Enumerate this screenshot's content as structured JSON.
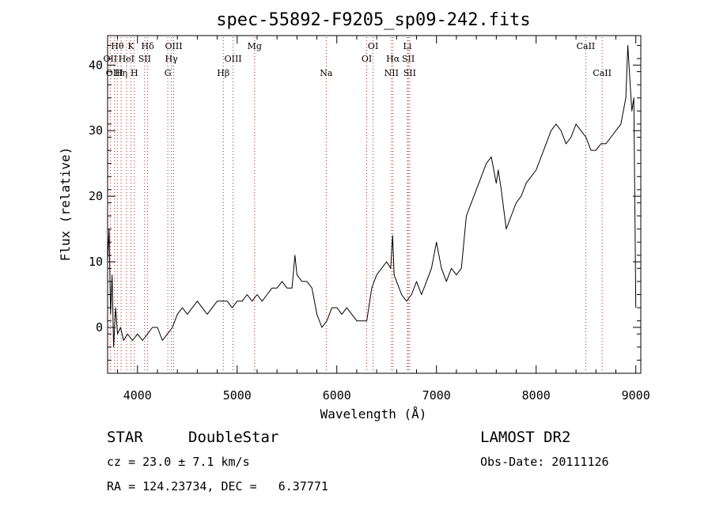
{
  "chart_data": {
    "type": "line",
    "title": "spec-55892-F9205_sp09-242.fits",
    "xlabel": "Wavelength (Å)",
    "ylabel": "Flux (relative)",
    "xlim": [
      3700,
      9050
    ],
    "ylim": [
      -7,
      44.5
    ],
    "x_ticks": [
      "4000",
      "5000",
      "6000",
      "7000",
      "8000",
      "9000"
    ],
    "x_tick_values": [
      4000,
      5000,
      6000,
      7000,
      8000,
      9000
    ],
    "y_ticks": [
      "0",
      "10",
      "20",
      "30",
      "40"
    ],
    "y_tick_values": [
      0,
      10,
      20,
      30,
      40
    ],
    "grid": false,
    "series": [
      {
        "x": [
          3700,
          3715,
          3730,
          3745,
          3760,
          3780,
          3800,
          3830,
          3860,
          3900,
          3950,
          4000,
          4050,
          4100,
          4150,
          4200,
          4250,
          4300,
          4350,
          4400,
          4450,
          4500,
          4550,
          4600,
          4650,
          4700,
          4750,
          4800,
          4850,
          4900,
          4950,
          5000,
          5050,
          5100,
          5150,
          5200,
          5250,
          5300,
          5350,
          5400,
          5450,
          5500,
          5550,
          5580,
          5600,
          5650,
          5700,
          5750,
          5800,
          5850,
          5900,
          5950,
          6000,
          6050,
          6100,
          6150,
          6200,
          6250,
          6300,
          6350,
          6400,
          6450,
          6500,
          6540,
          6560,
          6575,
          6600,
          6650,
          6700,
          6750,
          6800,
          6850,
          6900,
          6950,
          7000,
          7050,
          7100,
          7150,
          7200,
          7250,
          7300,
          7350,
          7400,
          7450,
          7500,
          7550,
          7600,
          7620,
          7650,
          7700,
          7750,
          7800,
          7850,
          7900,
          7950,
          8000,
          8050,
          8100,
          8150,
          8200,
          8250,
          8300,
          8350,
          8400,
          8450,
          8500,
          8550,
          8600,
          8650,
          8700,
          8750,
          8800,
          8850,
          8900,
          8920,
          8940,
          8960,
          8980,
          9000
        ],
        "y": [
          10,
          15,
          2,
          8,
          -3,
          3,
          -1,
          0,
          -2,
          -1,
          -2,
          -1,
          -2,
          -1,
          0,
          0,
          -2,
          -1,
          0,
          2,
          3,
          2,
          3,
          4,
          3,
          2,
          3,
          4,
          4,
          4,
          3,
          4,
          4,
          5,
          4,
          5,
          4,
          5,
          6,
          6,
          7,
          6,
          6,
          11,
          8,
          7,
          7,
          6,
          2,
          0,
          1,
          3,
          3,
          2,
          3,
          2,
          1,
          1,
          1,
          6,
          8,
          9,
          10,
          9,
          14,
          8,
          7,
          5,
          4,
          5,
          7,
          5,
          7,
          9,
          13,
          9,
          7,
          9,
          8,
          9,
          17,
          19,
          21,
          23,
          25,
          26,
          22,
          24,
          21,
          15,
          17,
          19,
          20,
          22,
          23,
          24,
          26,
          28,
          30,
          31,
          30,
          28,
          29,
          31,
          30,
          29,
          27,
          27,
          28,
          28,
          29,
          30,
          31,
          35,
          43,
          38,
          33,
          35,
          3
        ],
        "color": "#000000"
      }
    ],
    "line_ids": [
      {
        "label": "Hθ",
        "x": 3798,
        "row": 1,
        "color": "#b22222"
      },
      {
        "label": "OII",
        "x": 3727,
        "row": 2,
        "color": "#b22222"
      },
      {
        "label": "OIII",
        "x": 3770,
        "row": 3,
        "color": "#b22222"
      },
      {
        "label": "K",
        "x": 3934,
        "row": 1,
        "color": "#b22222"
      },
      {
        "label": "HeI",
        "x": 3889,
        "row": 2,
        "color": "#b22222"
      },
      {
        "label": "Hη",
        "x": 3835,
        "row": 3,
        "color": "#b22222"
      },
      {
        "label": "Hδ",
        "x": 4102,
        "row": 1,
        "color": "#b22222"
      },
      {
        "label": "SII",
        "x": 4072,
        "row": 2,
        "color": "#b22222"
      },
      {
        "label": "H",
        "x": 3968,
        "row": 3,
        "color": "#b22222"
      },
      {
        "label": "OIII",
        "x": 4363,
        "row": 1,
        "color": "#b22222"
      },
      {
        "label": "Hγ",
        "x": 4340,
        "row": 2,
        "color": "#b22222"
      },
      {
        "label": "G",
        "x": 4304,
        "row": 3,
        "color": "#b22222"
      },
      {
        "label": "OIII",
        "x": 4959,
        "row": 2,
        "color": "#b22222"
      },
      {
        "label": "Hβ",
        "x": 4861,
        "row": 3,
        "color": "#b22222"
      },
      {
        "label": "Mg",
        "x": 5175,
        "row": 1,
        "color": "#b22222"
      },
      {
        "label": "Na",
        "x": 5894,
        "row": 3,
        "color": "#b22222"
      },
      {
        "label": "OI",
        "x": 6364,
        "row": 1,
        "color": "#b22222"
      },
      {
        "label": "OI",
        "x": 6300,
        "row": 2,
        "color": "#b22222"
      },
      {
        "label": "Li",
        "x": 6708,
        "row": 1,
        "color": "#b22222"
      },
      {
        "label": "Hα",
        "x": 6563,
        "row": 2,
        "color": "#b22222"
      },
      {
        "label": "NII",
        "x": 6548,
        "row": 3,
        "color": "#b22222"
      },
      {
        "label": "SII",
        "x": 6717,
        "row": 2,
        "color": "#b22222"
      },
      {
        "label": "SII",
        "x": 6731,
        "row": 3,
        "color": "#b22222"
      },
      {
        "label": "CaII",
        "x": 8498,
        "row": 1,
        "color": "#b22222"
      },
      {
        "label": "CaII",
        "x": 8662,
        "row": 3,
        "color": "#b22222"
      }
    ]
  },
  "footer": {
    "object_class": "STAR",
    "subclass": "DoubleStar",
    "survey": "LAMOST DR2",
    "cz": "cz = 23.0 ± 7.1 km/s",
    "obs_date": "Obs-Date: 20111126",
    "coords": "RA = 124.23734, DEC =   6.37771"
  }
}
